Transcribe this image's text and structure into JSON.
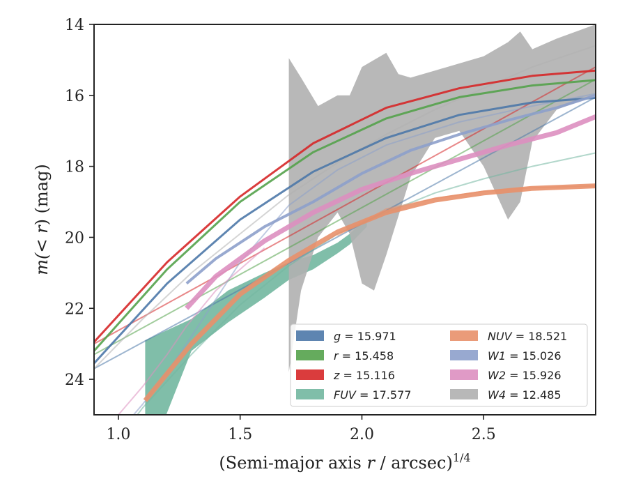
{
  "chart_data": {
    "type": "line",
    "title": "",
    "xlabel_main": "(Semi-major axis ",
    "xlabel_var": "r",
    "xlabel_tail": " / arcsec)",
    "xlabel_sup": "1/4",
    "ylabel_pre": "m(",
    "ylabel_var": "< r",
    "ylabel_post": ") (mag)",
    "xlim": [
      0.9,
      2.96
    ],
    "ylim": [
      25,
      14
    ],
    "y_inverted": true,
    "x_ticks": [
      1.0,
      1.5,
      2.0,
      2.5
    ],
    "x_tick_labels": [
      "1.0",
      "1.5",
      "2.0",
      "2.5"
    ],
    "y_ticks": [
      14,
      16,
      18,
      20,
      22,
      24
    ],
    "y_tick_labels": [
      "14",
      "16",
      "18",
      "20",
      "22",
      "24"
    ],
    "grid": false,
    "legend_position": "lower-right",
    "legend_columns": 2,
    "series": [
      {
        "name": "g",
        "label_value": "15.971",
        "color": "#4c78a8",
        "faint": [
          [
            0.9,
            23.7
          ],
          [
            2.96,
            16.05
          ]
        ],
        "model": [
          [
            0.9,
            23.55
          ],
          [
            1.2,
            21.3
          ],
          [
            1.5,
            19.5
          ],
          [
            1.8,
            18.15
          ],
          [
            2.1,
            17.2
          ],
          [
            2.4,
            16.55
          ],
          [
            2.7,
            16.2
          ],
          [
            2.96,
            16.07
          ]
        ]
      },
      {
        "name": "r",
        "label_value": "15.458",
        "color": "#54a24b",
        "faint": [
          [
            0.9,
            23.3
          ],
          [
            2.96,
            15.55
          ]
        ],
        "model": [
          [
            0.9,
            23.2
          ],
          [
            1.2,
            20.9
          ],
          [
            1.5,
            19.0
          ],
          [
            1.8,
            17.6
          ],
          [
            2.1,
            16.65
          ],
          [
            2.4,
            16.05
          ],
          [
            2.7,
            15.72
          ],
          [
            2.96,
            15.57
          ]
        ]
      },
      {
        "name": "z",
        "label_value": "15.116",
        "color": "#d62728",
        "faint": [
          [
            0.9,
            23.0
          ],
          [
            2.96,
            15.2
          ]
        ],
        "model": [
          [
            0.9,
            22.95
          ],
          [
            1.2,
            20.7
          ],
          [
            1.5,
            18.85
          ],
          [
            1.8,
            17.35
          ],
          [
            2.1,
            16.35
          ],
          [
            2.4,
            15.8
          ],
          [
            2.7,
            15.45
          ],
          [
            2.96,
            15.3
          ]
        ]
      },
      {
        "name": "FUV",
        "label_value": "17.577",
        "color": "#72b7a0",
        "faint": [
          [
            0.9,
            26.6
          ],
          [
            1.1,
            24.8
          ],
          [
            1.3,
            23.3
          ],
          [
            1.5,
            21.9
          ],
          [
            1.7,
            20.8
          ],
          [
            1.9,
            19.9
          ],
          [
            2.1,
            19.3
          ],
          [
            2.3,
            18.75
          ],
          [
            2.5,
            18.35
          ],
          [
            2.7,
            18.0
          ],
          [
            2.96,
            17.62
          ]
        ],
        "band_upper": [
          [
            1.11,
            22.9
          ],
          [
            1.3,
            22.3
          ],
          [
            1.45,
            21.5
          ],
          [
            1.6,
            21.0
          ],
          [
            1.7,
            20.7
          ],
          [
            1.8,
            20.5
          ],
          [
            1.9,
            20.15
          ],
          [
            1.95,
            19.9
          ],
          [
            2.02,
            19.45
          ]
        ],
        "band_lower": [
          [
            1.11,
            26.5
          ],
          [
            1.3,
            23.2
          ],
          [
            1.45,
            22.4
          ],
          [
            1.6,
            21.7
          ],
          [
            1.7,
            21.2
          ],
          [
            1.8,
            20.9
          ],
          [
            1.9,
            20.45
          ],
          [
            1.95,
            20.2
          ],
          [
            2.02,
            19.7
          ]
        ]
      },
      {
        "name": "NUV",
        "label_value": "18.521",
        "color": "#e8906a",
        "faint": [
          [
            1.9,
            19.95
          ],
          [
            2.1,
            19.2
          ],
          [
            2.3,
            18.9
          ],
          [
            2.5,
            18.7
          ],
          [
            2.7,
            18.6
          ],
          [
            2.96,
            18.55
          ]
        ],
        "model": [
          [
            1.11,
            24.6
          ],
          [
            1.3,
            23.0
          ],
          [
            1.5,
            21.6
          ],
          [
            1.7,
            20.65
          ],
          [
            1.9,
            19.85
          ],
          [
            2.1,
            19.3
          ],
          [
            2.3,
            18.95
          ],
          [
            2.5,
            18.75
          ],
          [
            2.7,
            18.62
          ],
          [
            2.96,
            18.55
          ]
        ]
      },
      {
        "name": "W1",
        "label_value": "15.026",
        "color": "#8da0cb",
        "faint": [
          [
            1.0,
            25.5
          ],
          [
            1.1,
            24.7
          ],
          [
            1.2,
            23.8
          ],
          [
            1.28,
            23.0
          ],
          [
            1.5,
            20.7
          ],
          [
            1.7,
            19.1
          ],
          [
            1.9,
            18.1
          ],
          [
            2.1,
            17.4
          ],
          [
            2.4,
            16.75
          ],
          [
            2.7,
            16.3
          ],
          [
            2.96,
            15.95
          ]
        ],
        "model": [
          [
            1.28,
            21.3
          ],
          [
            1.4,
            20.6
          ],
          [
            1.6,
            19.7
          ],
          [
            1.8,
            19.0
          ],
          [
            2.0,
            18.2
          ],
          [
            2.2,
            17.55
          ],
          [
            2.4,
            17.1
          ],
          [
            2.6,
            16.7
          ],
          [
            2.8,
            16.35
          ],
          [
            2.96,
            16.0
          ]
        ]
      },
      {
        "name": "W2",
        "label_value": "15.926",
        "color": "#dd8fc0",
        "faint": [
          [
            1.0,
            25.0
          ],
          [
            1.1,
            24.2
          ],
          [
            1.2,
            23.3
          ],
          [
            1.28,
            22.5
          ],
          [
            1.4,
            21.5
          ],
          [
            1.6,
            20.3
          ]
        ],
        "model": [
          [
            1.28,
            22.0
          ],
          [
            1.4,
            21.1
          ],
          [
            1.6,
            20.1
          ],
          [
            1.8,
            19.3
          ],
          [
            2.0,
            18.65
          ],
          [
            2.2,
            18.2
          ],
          [
            2.4,
            17.8
          ],
          [
            2.6,
            17.4
          ],
          [
            2.8,
            17.05
          ],
          [
            2.96,
            16.6
          ]
        ]
      },
      {
        "name": "W4",
        "label_value": "12.485",
        "color": "#b0b0b0",
        "faint": [
          [
            0.9,
            23.7
          ],
          [
            1.1,
            22.3
          ],
          [
            1.3,
            21.0
          ],
          [
            1.5,
            19.9
          ],
          [
            1.7,
            18.8
          ],
          [
            1.9,
            17.9
          ],
          [
            2.1,
            17.1
          ],
          [
            2.3,
            16.4
          ],
          [
            2.5,
            15.8
          ],
          [
            2.7,
            15.2
          ],
          [
            2.96,
            14.6
          ]
        ],
        "band_upper": [
          [
            1.7,
            14.95
          ],
          [
            1.75,
            15.5
          ],
          [
            1.82,
            16.3
          ],
          [
            1.9,
            16.0
          ],
          [
            1.95,
            16.0
          ],
          [
            2.0,
            15.2
          ],
          [
            2.1,
            14.8
          ],
          [
            2.15,
            15.4
          ],
          [
            2.2,
            15.5
          ],
          [
            2.3,
            15.3
          ],
          [
            2.4,
            15.1
          ],
          [
            2.5,
            14.9
          ],
          [
            2.6,
            14.5
          ],
          [
            2.65,
            14.2
          ],
          [
            2.7,
            14.7
          ],
          [
            2.8,
            14.4
          ],
          [
            2.96,
            14.0
          ]
        ],
        "band_lower": [
          [
            1.7,
            23.8
          ],
          [
            1.75,
            21.5
          ],
          [
            1.82,
            20.0
          ],
          [
            1.9,
            19.3
          ],
          [
            1.95,
            19.9
          ],
          [
            2.0,
            21.3
          ],
          [
            2.05,
            21.5
          ],
          [
            2.1,
            20.5
          ],
          [
            2.2,
            18.3
          ],
          [
            2.3,
            17.2
          ],
          [
            2.4,
            17.0
          ],
          [
            2.5,
            18.0
          ],
          [
            2.6,
            19.5
          ],
          [
            2.65,
            19.0
          ],
          [
            2.7,
            17.3
          ],
          [
            2.8,
            16.4
          ],
          [
            2.96,
            16.0
          ]
        ]
      }
    ]
  }
}
